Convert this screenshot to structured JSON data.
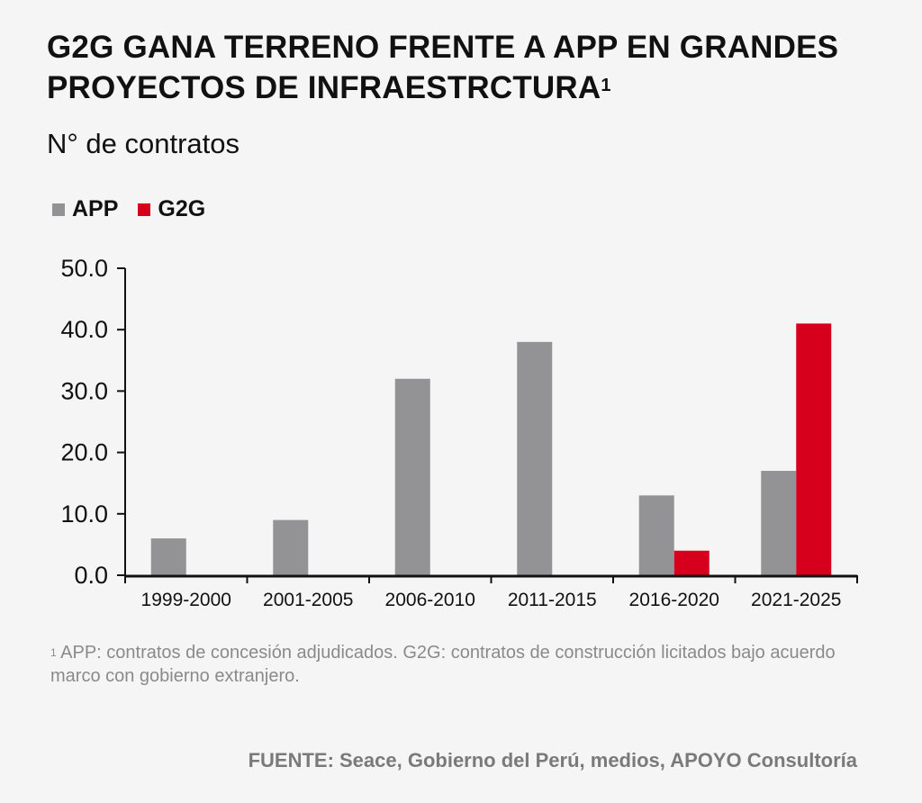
{
  "title": {
    "text": "G2G GANA TERRENO FRENTE A APP EN GRANDES PROYECTOS DE INFRAESTRCTURA",
    "marker": "1"
  },
  "chart_data": {
    "type": "bar",
    "title": "G2G GANA TERRENO FRENTE A APP EN GRANDES PROYECTOS DE INFRAESTRCTURA",
    "subtitle": "N° de contratos",
    "xlabel": "",
    "ylabel": "N° de contratos",
    "ylim": [
      0,
      50
    ],
    "yticks": [
      0,
      10,
      20,
      30,
      40,
      50
    ],
    "ytick_labels": [
      "0.0",
      "10.0",
      "20.0",
      "30.0",
      "40.0",
      "50.0"
    ],
    "categories": [
      "1999-2000",
      "2001-2005",
      "2006-2010",
      "2011-2015",
      "2016-2020",
      "2021-2025"
    ],
    "series": [
      {
        "name": "APP",
        "color": "#939395",
        "values": [
          6,
          9,
          32,
          38,
          13,
          17
        ]
      },
      {
        "name": "G2G",
        "color": "#d6001c",
        "values": [
          0,
          0,
          0,
          0,
          4,
          41
        ]
      }
    ],
    "legend": "top-left",
    "grid": false
  },
  "note": {
    "marker": "1",
    "text": "APP: contratos de concesión adjudicados. G2G: contratos de construcción licitados bajo acuerdo marco con gobierno extranjero."
  },
  "source": "FUENTE: Seace, Gobierno del Perú, medios, APOYO Consultoría"
}
